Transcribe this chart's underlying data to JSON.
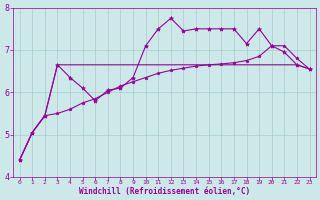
{
  "bg_color": "#cce8e8",
  "line_color": "#990099",
  "grid_color": "#aacccc",
  "xlabel": "Windchill (Refroidissement éolien,°C)",
  "xlabel_color": "#990099",
  "tick_color": "#990099",
  "xlim": [
    -0.5,
    23.5
  ],
  "ylim": [
    4,
    8
  ],
  "yticks": [
    4,
    5,
    6,
    7,
    8
  ],
  "xticks": [
    0,
    1,
    2,
    3,
    4,
    5,
    6,
    7,
    8,
    9,
    10,
    11,
    12,
    13,
    14,
    15,
    16,
    17,
    18,
    19,
    20,
    21,
    22,
    23
  ],
  "line1_x": [
    0,
    1,
    2,
    3,
    4,
    5,
    6,
    7,
    8,
    9,
    10,
    11,
    12,
    13,
    14,
    15,
    16,
    17,
    18,
    19,
    20,
    21,
    22,
    23
  ],
  "line1_y": [
    4.4,
    5.05,
    5.45,
    6.65,
    6.35,
    6.1,
    5.8,
    6.05,
    6.1,
    6.35,
    7.1,
    7.5,
    7.75,
    7.45,
    7.5,
    7.5,
    7.5,
    7.5,
    7.15,
    7.5,
    7.1,
    6.95,
    6.65,
    6.55
  ],
  "line2_x": [
    0,
    1,
    2,
    3,
    4,
    5,
    6,
    7,
    8,
    9,
    10,
    11,
    12,
    13,
    14,
    15,
    16,
    17,
    18,
    19,
    20,
    21,
    22,
    23
  ],
  "line2_y": [
    4.4,
    5.05,
    5.45,
    6.65,
    6.65,
    6.65,
    6.65,
    6.65,
    6.65,
    6.65,
    6.65,
    6.65,
    6.65,
    6.65,
    6.65,
    6.65,
    6.65,
    6.65,
    6.65,
    6.65,
    6.65,
    6.65,
    6.65,
    6.55
  ],
  "line3_x": [
    0,
    1,
    2,
    3,
    4,
    5,
    6,
    7,
    8,
    9,
    10,
    11,
    12,
    13,
    14,
    15,
    16,
    17,
    18,
    19,
    20,
    21,
    22,
    23
  ],
  "line3_y": [
    4.4,
    5.05,
    5.45,
    5.5,
    5.6,
    5.75,
    5.85,
    6.0,
    6.15,
    6.25,
    6.35,
    6.45,
    6.52,
    6.57,
    6.62,
    6.65,
    6.67,
    6.7,
    6.75,
    6.85,
    7.1,
    7.1,
    6.8,
    6.55
  ]
}
